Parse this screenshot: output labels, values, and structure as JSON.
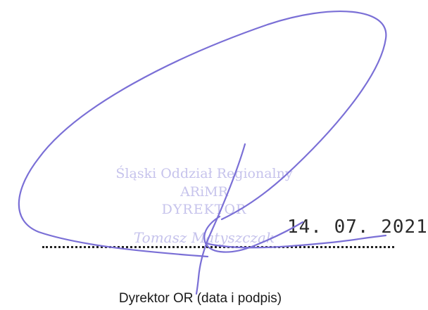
{
  "stamp": {
    "office": "Śląski Oddział Regionalny",
    "agency": "ARiMR",
    "title": "DYREKTOR",
    "name": "Tomasz Matyszczak",
    "color": "#c6c3ec"
  },
  "date": "14. 07. 2021",
  "caption": "Dyrektor OR (data i podpis)",
  "signature": {
    "ink_color": "#7a6fd6"
  }
}
